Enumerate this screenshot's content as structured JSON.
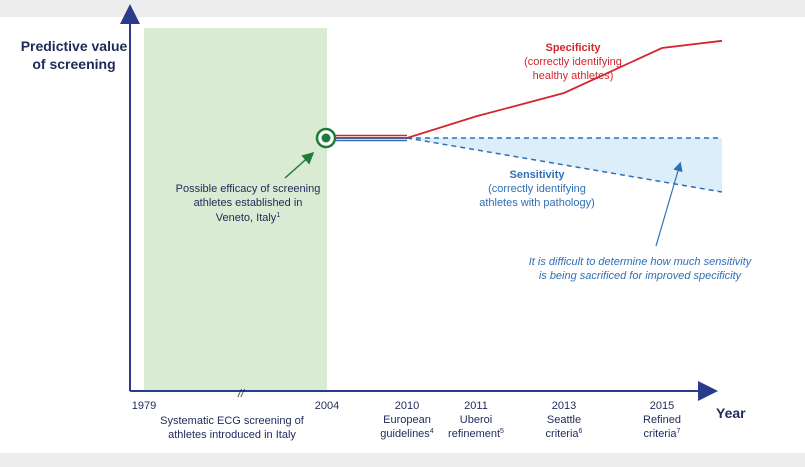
{
  "chart_data": {
    "type": "line",
    "ylabel_lines": [
      "Predictive value",
      "of screening"
    ],
    "xlabel": "Year",
    "x_ticks": [
      {
        "year": 1979,
        "label": "1979",
        "sub": []
      },
      {
        "year": 2004,
        "label": "2004",
        "sub": []
      },
      {
        "year": 2010,
        "label": "2010",
        "sub": [
          "European",
          "guidelines",
          "4"
        ]
      },
      {
        "year": 2011,
        "label": "2011",
        "sub": [
          "Uberoi",
          "refinement",
          "5"
        ]
      },
      {
        "year": 2013,
        "label": "2013",
        "sub": [
          "Seattle",
          "criteria",
          "6"
        ]
      },
      {
        "year": 2015,
        "label": "2015",
        "sub": [
          "Refined",
          "criteria",
          "7"
        ]
      }
    ],
    "axis_break_marker": "//",
    "shaded_era": {
      "from": 1979,
      "to": 2004,
      "label_lines": [
        "Systematic ECG screening of",
        "athletes introduced in Italy"
      ],
      "color": "#d9ebd2"
    },
    "start_marker": {
      "year": 2004,
      "annotation_lines": [
        "Possible efficacy of screening",
        "athletes established in",
        "Veneto, Italy"
      ],
      "annotation_sup": "1"
    },
    "series": [
      {
        "name": "Specificity",
        "subtitle_lines": [
          "(correctly identifying",
          "healthy athletes)"
        ],
        "color": "#d3262e",
        "style": "solid",
        "points": [
          [
            2004,
            0.0
          ],
          [
            2010,
            0.0
          ],
          [
            2011,
            0.24
          ],
          [
            2013,
            0.5
          ],
          [
            2015,
            1.0
          ],
          [
            2016,
            1.08
          ]
        ]
      },
      {
        "name": "Sensitivity",
        "subtitle_lines": [
          "(correctly identifying",
          "athletes with pathology)"
        ],
        "color": "#2e6fb8",
        "style": "dashed",
        "points": [
          [
            2004,
            0.0
          ],
          [
            2010,
            0.0
          ],
          [
            2016,
            -0.6
          ]
        ],
        "reference_points": [
          [
            2010,
            0.0
          ],
          [
            2016,
            0.0
          ]
        ],
        "band_color": "#dbeefa"
      }
    ],
    "note_lines": [
      "It is difficult to determine how much sensitivity",
      "is being sacrificed for improved specificity"
    ],
    "colors": {
      "axis": "#2a3a8c",
      "navy_line": "#1f2a5a",
      "marker": "#1f7a3a"
    }
  }
}
